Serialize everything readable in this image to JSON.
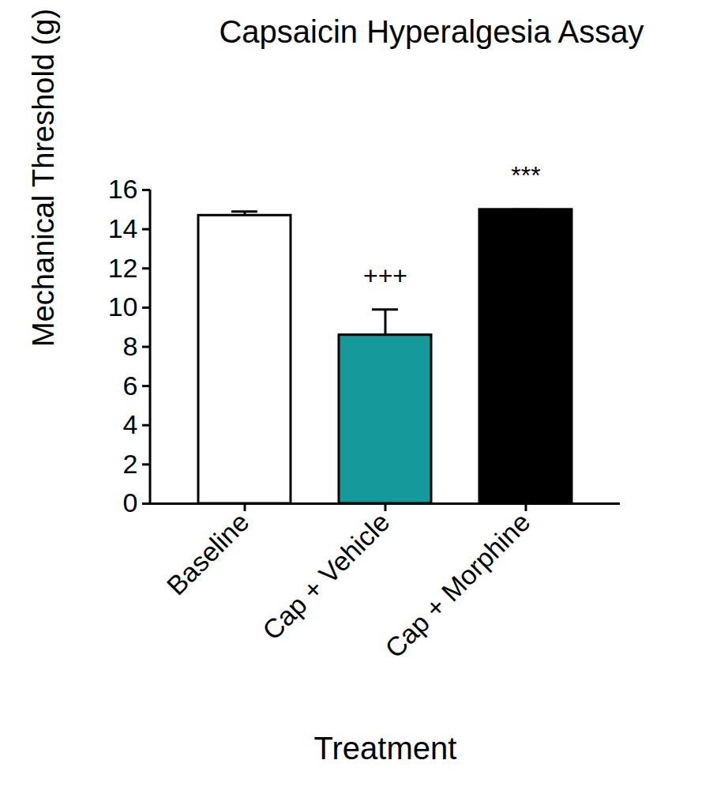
{
  "chart_data": {
    "type": "bar",
    "title": "Capsaicin Hyperalgesia Assay",
    "x_label": "Treatment",
    "y_label": "Mechanical Threshold (g)",
    "categories": [
      "Baseline",
      "Cap + Vehicle",
      "Cap + Morphine"
    ],
    "values": [
      14.7,
      8.6,
      15.0
    ],
    "errors": [
      0.2,
      1.3,
      0
    ],
    "colors": [
      "#ffffff",
      "#16999a",
      "#000000"
    ],
    "ylim": [
      0,
      16
    ],
    "yticks": [
      0,
      2,
      4,
      6,
      8,
      10,
      12,
      14,
      16
    ],
    "annotations": [
      {
        "category": "Cap + Vehicle",
        "text": "+++"
      },
      {
        "category": "Cap + Morphine",
        "text": "***"
      }
    ]
  }
}
